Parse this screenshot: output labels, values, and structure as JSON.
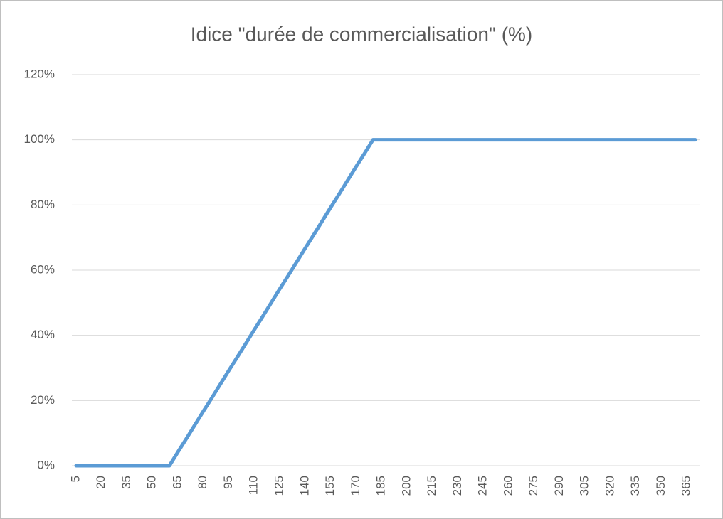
{
  "chart_data": {
    "type": "line",
    "title": "Idice \"durée de commercialisation\" (%)",
    "categories": [
      5,
      null,
      null,
      20,
      null,
      null,
      35,
      null,
      null,
      50,
      null,
      null,
      65,
      null,
      null,
      80,
      null,
      null,
      95,
      null,
      null,
      110,
      null,
      null,
      125,
      null,
      null,
      140,
      null,
      null,
      155,
      null,
      null,
      170,
      null,
      null,
      185,
      null,
      null,
      200,
      null,
      null,
      215,
      null,
      null,
      230,
      null,
      null,
      245,
      null,
      null,
      260,
      null,
      null,
      275,
      null,
      null,
      290,
      null,
      null,
      305,
      null,
      null,
      320,
      null,
      null,
      335,
      null,
      null,
      350,
      null,
      null,
      365,
      null
    ],
    "values": [
      0,
      0,
      0,
      0,
      0,
      0,
      0,
      0,
      0,
      0,
      0,
      0,
      4.2,
      8.3,
      12.5,
      16.7,
      20.8,
      25,
      29.2,
      33.3,
      37.5,
      41.7,
      45.8,
      50,
      54.2,
      58.3,
      62.5,
      66.7,
      70.8,
      75,
      79.2,
      83.3,
      87.5,
      91.7,
      95.8,
      100,
      100,
      100,
      100,
      100,
      100,
      100,
      100,
      100,
      100,
      100,
      100,
      100,
      100,
      100,
      100,
      100,
      100,
      100,
      100,
      100,
      100,
      100,
      100,
      100,
      100,
      100,
      100,
      100,
      100,
      100,
      100,
      100,
      100,
      100,
      100,
      100,
      100,
      100
    ],
    "color": "#5b9bd5",
    "ylim": [
      0,
      120
    ],
    "yticks": [
      {
        "value": 0,
        "label": "0%"
      },
      {
        "value": 20,
        "label": "20%"
      },
      {
        "value": 40,
        "label": "40%"
      },
      {
        "value": 60,
        "label": "60%"
      },
      {
        "value": 80,
        "label": "80%"
      },
      {
        "value": 100,
        "label": "100%"
      },
      {
        "value": 120,
        "label": "120%"
      }
    ],
    "grid": true
  }
}
